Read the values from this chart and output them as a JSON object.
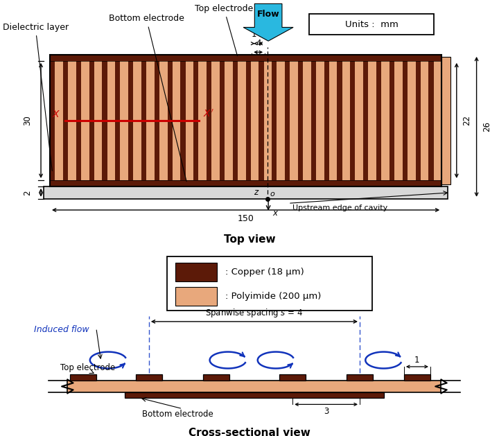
{
  "bg_color": "#ffffff",
  "copper_color": "#5C1A08",
  "polyimide_color": "#E8A87C",
  "flow_arrow_color": "#29B8E0",
  "red_line_color": "#CC0000",
  "blue_color": "#1133BB",
  "top_view_title": "Top view",
  "cross_view_title": "Cross-sectional view",
  "units_text": "Units :  mm",
  "flow_text": "Flow",
  "upstream_text": "Upstream edge of cavity",
  "induced_flow_text": "Induced flow",
  "spanwise_text": "Spanwise spacing $s$ = 4",
  "top_electrode_text": "Top electrode",
  "bottom_electrode_text": "Bottom electrode",
  "dielectric_text": "Dielectric layer",
  "top_electrode_cross": "Top electrode",
  "bottom_electrode_cross": "Bottom electrode",
  "copper_legend": ": Copper (18 μm)",
  "polyimide_legend": ": Polyimide (200 μm)"
}
